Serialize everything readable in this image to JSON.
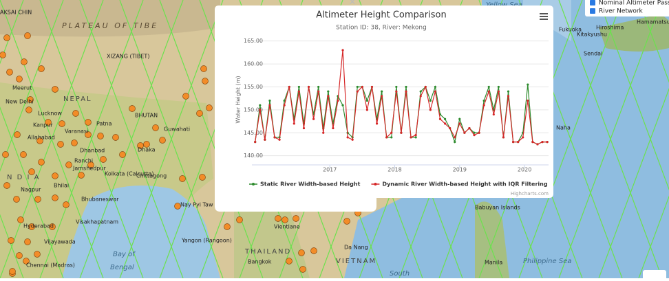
{
  "map": {
    "labels": [
      "PLATEAU OF TIBE",
      "AKSAI CHIN",
      "XIZANG (TIBET)",
      "NEPAL",
      "BHUTAN",
      "New Delhi",
      "Meerut",
      "Lucknow",
      "Kanpur",
      "Allahabad",
      "Varanasi",
      "Patna",
      "Guwahati",
      "Dhanbad",
      "Ranchi",
      "Jamshedpur",
      "Kolkata (Calcutta)",
      "Dhaka",
      "Chittagong",
      "Bhubaneswar",
      "N D I A",
      "Nagpur",
      "Bhilai",
      "Visakhapatnam",
      "Hyderabad",
      "Vijayawada",
      "Chennai (Madras)",
      "Bay of",
      "Bengal",
      "Nay Pyi Taw",
      "Yangon (Rangoon)",
      "Vientiane",
      "Da Nang",
      "THAILAND",
      "Bangkok",
      "VIETNAM",
      "South",
      "Manila",
      "Philippine Sea",
      "Babuyan Islands",
      "Naha",
      "Sendai",
      "Fukuoka",
      "Kitakyushu",
      "Hiroshima",
      "Hamamatsu",
      "Yellow Sea"
    ]
  },
  "layers": {
    "items": [
      "Nominal Altimeter Pass",
      "River Network"
    ]
  },
  "popup": {
    "close": "×",
    "credit": "Highcharts.com"
  },
  "chart_data": {
    "type": "line",
    "title": "Altimeter Height Comparison",
    "subtitle": "Station ID: 38, River: Mekong",
    "y_label": "Water Height (m)",
    "x": [
      2015.85,
      2015.925,
      2016.0,
      2016.075,
      2016.15,
      2016.225,
      2016.3,
      2016.375,
      2016.45,
      2016.525,
      2016.6,
      2016.675,
      2016.75,
      2016.825,
      2016.9,
      2016.975,
      2017.05,
      2017.125,
      2017.2,
      2017.275,
      2017.35,
      2017.425,
      2017.5,
      2017.575,
      2017.65,
      2017.725,
      2017.8,
      2017.875,
      2017.95,
      2018.025,
      2018.1,
      2018.175,
      2018.25,
      2018.325,
      2018.4,
      2018.475,
      2018.55,
      2018.625,
      2018.7,
      2018.775,
      2018.85,
      2018.925,
      2019.0,
      2019.075,
      2019.15,
      2019.225,
      2019.3,
      2019.375,
      2019.45,
      2019.525,
      2019.6,
      2019.675,
      2019.75,
      2019.825,
      2019.9,
      2019.975,
      2020.05,
      2020.125,
      2020.2,
      2020.275,
      2020.35
    ],
    "series": [
      {
        "name": "Static River Width-based Height",
        "color": "#2e8b2e",
        "values": [
          143,
          151,
          143.5,
          152,
          144,
          144,
          152,
          155,
          148,
          155,
          147,
          155,
          149,
          155,
          146,
          154,
          147,
          153,
          151,
          145,
          144,
          155,
          155,
          152,
          155,
          148,
          154,
          144,
          144,
          155,
          145,
          155,
          144,
          144,
          154,
          155,
          152,
          155,
          149,
          148,
          146,
          143,
          148,
          145,
          146,
          145,
          145,
          152,
          155,
          150,
          155,
          144,
          154,
          143,
          143,
          145,
          155.5,
          143,
          142.5,
          143,
          143
        ]
      },
      {
        "name": "Dynamic River Width-based Height with IQR Filtering",
        "color": "#d62728",
        "values": [
          143,
          150,
          143.5,
          151,
          144,
          143.5,
          151,
          155,
          147,
          154,
          146,
          155,
          148,
          154,
          145,
          153,
          146,
          152,
          163,
          144,
          143.5,
          154,
          155,
          150,
          155,
          147,
          153,
          144,
          145,
          154,
          145,
          154,
          144,
          144.5,
          153,
          155,
          150,
          154,
          148,
          147,
          146,
          144,
          147,
          145,
          146,
          144.5,
          145,
          151,
          154,
          149,
          154,
          144,
          153,
          143,
          143,
          144,
          152,
          143,
          142.5,
          143,
          143
        ]
      }
    ],
    "xlim": [
      2015.8,
      2020.37
    ],
    "xticks": [
      2017,
      2018,
      2019,
      2020
    ],
    "ylim": [
      138.6,
      166
    ],
    "yticks": [
      {
        "value": 140,
        "label": "140.00"
      },
      {
        "value": 145,
        "label": "145.00"
      },
      {
        "value": 150,
        "label": "150.00"
      },
      {
        "value": 155,
        "label": "155.00"
      },
      {
        "value": 160,
        "label": "160.00"
      },
      {
        "value": 165,
        "label": "165.00"
      }
    ],
    "grid": true,
    "legend": "bottom"
  }
}
